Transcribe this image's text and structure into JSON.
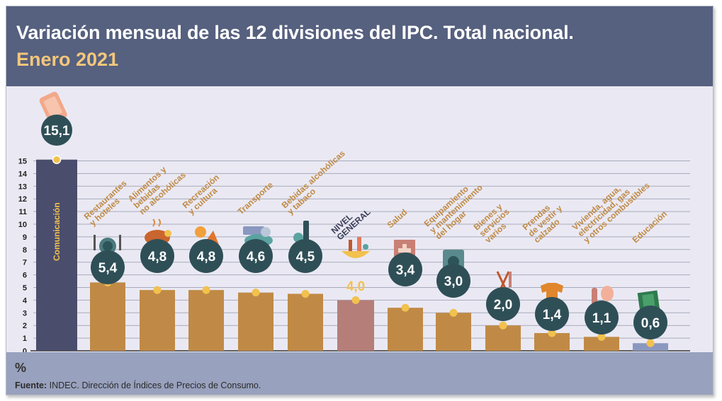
{
  "header": {
    "title": "Variación mensual de las 12 divisiones del IPC. Total nacional.",
    "subtitle": "Enero 2021"
  },
  "footer": {
    "unit": "%",
    "source_label": "Fuente:",
    "source_text": " INDEC. Dirección de Índices de Precios de Consumo."
  },
  "chart_data": {
    "type": "bar",
    "categories": [
      "Comunicación",
      "Restaurantes y hoteles",
      "Alimentos y bebidas no alcohólicas",
      "Recreación y cultura",
      "Transporte",
      "Bebidas alcohólicas y tabaco",
      "NIVEL GENERAL",
      "Salud",
      "Equipamiento y mantenimiento del hogar",
      "Bienes y servicios varios",
      "Prendas de vestir y calzado",
      "Vivienda, agua, electricidad, gas y otros combustibles",
      "Educación"
    ],
    "label_lines": [
      [
        "Comunicación"
      ],
      [
        "Restaurantes",
        "y hoteles"
      ],
      [
        "Alimentos y",
        "bebidas",
        "no alcohólicas"
      ],
      [
        "Recreación",
        "y cultura"
      ],
      [
        "Transporte"
      ],
      [
        "Bebidas alcohólicas",
        "y tabaco"
      ],
      [
        "NIVEL",
        "GENERAL"
      ],
      [
        "Salud"
      ],
      [
        "Equipamiento",
        "y mantenimiento",
        "del hogar"
      ],
      [
        "Bienes y",
        "servicios",
        "varios"
      ],
      [
        "Prendas",
        "de vestir y",
        "calzado"
      ],
      [
        "Vivienda, agua,",
        "electricidad, gas",
        "y otros combustibles"
      ],
      [
        "Educación"
      ]
    ],
    "values": [
      15.1,
      5.4,
      4.8,
      4.8,
      4.6,
      4.5,
      4.0,
      3.4,
      3.0,
      2.0,
      1.4,
      1.1,
      0.6
    ],
    "value_labels": [
      "15,1",
      "5,4",
      "4,8",
      "4,8",
      "4,6",
      "4,5",
      "4,0",
      "3,4",
      "3,0",
      "2,0",
      "1,4",
      "1,1",
      "0,6"
    ],
    "icons": [
      "smartphone-icon",
      "restaurant-icon",
      "food-icon",
      "recreation-icon",
      "transport-icon",
      "beverages-icon",
      "general-level-icon",
      "health-icon",
      "washing-machine-icon",
      "personal-care-icon",
      "clothing-icon",
      "housing-icon",
      "education-icon"
    ],
    "yticks": [
      "0",
      "1",
      "2",
      "3",
      "4",
      "5",
      "6",
      "7",
      "8",
      "9",
      "10",
      "11",
      "12",
      "13",
      "14",
      "15"
    ],
    "ylim": [
      0,
      15
    ],
    "grid": true,
    "colors": {
      "communication_bar": "#4a4d6c",
      "standard_bar": "#c08a46",
      "general_bar": "#b57e78",
      "education_bar": "#8a98c0",
      "marker": "#f2c14e",
      "badge": "#2f4f57",
      "label_text": "#c08a46",
      "general_label_text": "#3a3d58",
      "general_value_text": "#f2c14e"
    }
  }
}
